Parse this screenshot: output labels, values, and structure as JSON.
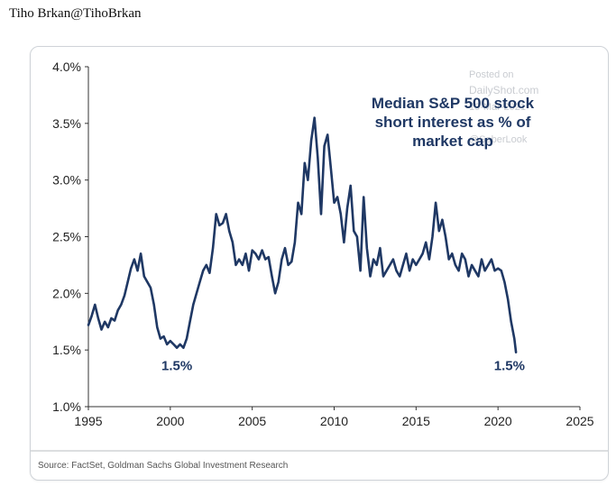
{
  "post": {
    "author_line": "Tiho Brkan@TihoBrkan"
  },
  "chart_data": {
    "type": "line",
    "title": "Median S&P 500 stock short interest as % of market cap",
    "title_lines": [
      "Median S&P 500 stock",
      "short interest as % of",
      "market cap"
    ],
    "watermark": [
      "Posted on",
      "DailyShot.com",
      "19-Mar-2021",
      "@SoberLook"
    ],
    "source": "Source: FactSet, Goldman Sachs Global Investment Research",
    "xlabel": "",
    "ylabel": "",
    "xlim": [
      1995,
      2025
    ],
    "ylim": [
      1.0,
      4.0
    ],
    "x_ticks": [
      1995,
      2000,
      2005,
      2010,
      2015,
      2020,
      2025
    ],
    "y_ticks": [
      1.0,
      1.5,
      2.0,
      2.5,
      3.0,
      3.5,
      4.0
    ],
    "y_tick_labels": [
      "1.0%",
      "1.5%",
      "2.0%",
      "2.5%",
      "3.0%",
      "3.5%",
      "4.0%"
    ],
    "x_tick_labels": [
      "1995",
      "2000",
      "2005",
      "2010",
      "2015",
      "2020",
      "2025"
    ],
    "grid": false,
    "line_color": "#1f3864",
    "annotations": [
      {
        "text": "1.5%",
        "x": 2000.4,
        "y": 1.37
      },
      {
        "text": "1.5%",
        "x": 2020.7,
        "y": 1.37
      }
    ],
    "series": [
      {
        "name": "",
        "x": [
          1995.0,
          1995.2,
          1995.4,
          1995.6,
          1995.8,
          1996.0,
          1996.2,
          1996.4,
          1996.6,
          1996.8,
          1997.0,
          1997.2,
          1997.4,
          1997.6,
          1997.8,
          1998.0,
          1998.2,
          1998.4,
          1998.6,
          1998.8,
          1999.0,
          1999.2,
          1999.4,
          1999.6,
          1999.8,
          2000.0,
          2000.2,
          2000.4,
          2000.6,
          2000.8,
          2001.0,
          2001.2,
          2001.4,
          2001.6,
          2001.8,
          2002.0,
          2002.2,
          2002.4,
          2002.6,
          2002.8,
          2003.0,
          2003.2,
          2003.4,
          2003.6,
          2003.8,
          2004.0,
          2004.2,
          2004.4,
          2004.6,
          2004.8,
          2005.0,
          2005.2,
          2005.4,
          2005.6,
          2005.8,
          2006.0,
          2006.2,
          2006.4,
          2006.6,
          2006.8,
          2007.0,
          2007.2,
          2007.4,
          2007.6,
          2007.8,
          2008.0,
          2008.2,
          2008.4,
          2008.6,
          2008.8,
          2009.0,
          2009.2,
          2009.4,
          2009.6,
          2009.8,
          2010.0,
          2010.2,
          2010.4,
          2010.6,
          2010.8,
          2011.0,
          2011.2,
          2011.4,
          2011.6,
          2011.8,
          2012.0,
          2012.2,
          2012.4,
          2012.6,
          2012.8,
          2013.0,
          2013.2,
          2013.4,
          2013.6,
          2013.8,
          2014.0,
          2014.2,
          2014.4,
          2014.6,
          2014.8,
          2015.0,
          2015.2,
          2015.4,
          2015.6,
          2015.8,
          2016.0,
          2016.2,
          2016.4,
          2016.6,
          2016.8,
          2017.0,
          2017.2,
          2017.4,
          2017.6,
          2017.8,
          2018.0,
          2018.2,
          2018.4,
          2018.6,
          2018.8,
          2019.0,
          2019.2,
          2019.4,
          2019.6,
          2019.8,
          2020.0,
          2020.2,
          2020.4,
          2020.6,
          2020.8,
          2021.0,
          2021.1
        ],
        "y": [
          1.72,
          1.8,
          1.9,
          1.78,
          1.68,
          1.75,
          1.7,
          1.78,
          1.76,
          1.85,
          1.9,
          1.98,
          2.1,
          2.22,
          2.3,
          2.2,
          2.35,
          2.15,
          2.1,
          2.05,
          1.9,
          1.7,
          1.6,
          1.62,
          1.55,
          1.58,
          1.55,
          1.52,
          1.55,
          1.52,
          1.6,
          1.75,
          1.9,
          2.0,
          2.1,
          2.2,
          2.25,
          2.18,
          2.4,
          2.7,
          2.6,
          2.62,
          2.7,
          2.55,
          2.45,
          2.25,
          2.3,
          2.25,
          2.35,
          2.2,
          2.38,
          2.35,
          2.3,
          2.38,
          2.3,
          2.32,
          2.15,
          2.0,
          2.1,
          2.3,
          2.4,
          2.25,
          2.28,
          2.45,
          2.8,
          2.7,
          3.15,
          3.0,
          3.35,
          3.55,
          3.2,
          2.7,
          3.3,
          3.4,
          3.1,
          2.8,
          2.85,
          2.7,
          2.45,
          2.75,
          2.95,
          2.55,
          2.5,
          2.2,
          2.85,
          2.4,
          2.15,
          2.3,
          2.25,
          2.4,
          2.15,
          2.2,
          2.25,
          2.3,
          2.2,
          2.15,
          2.25,
          2.35,
          2.2,
          2.3,
          2.25,
          2.3,
          2.35,
          2.45,
          2.3,
          2.5,
          2.8,
          2.55,
          2.65,
          2.5,
          2.3,
          2.35,
          2.25,
          2.2,
          2.35,
          2.3,
          2.15,
          2.25,
          2.2,
          2.15,
          2.3,
          2.2,
          2.25,
          2.3,
          2.2,
          2.22,
          2.2,
          2.1,
          1.95,
          1.75,
          1.6,
          1.48
        ]
      }
    ]
  }
}
